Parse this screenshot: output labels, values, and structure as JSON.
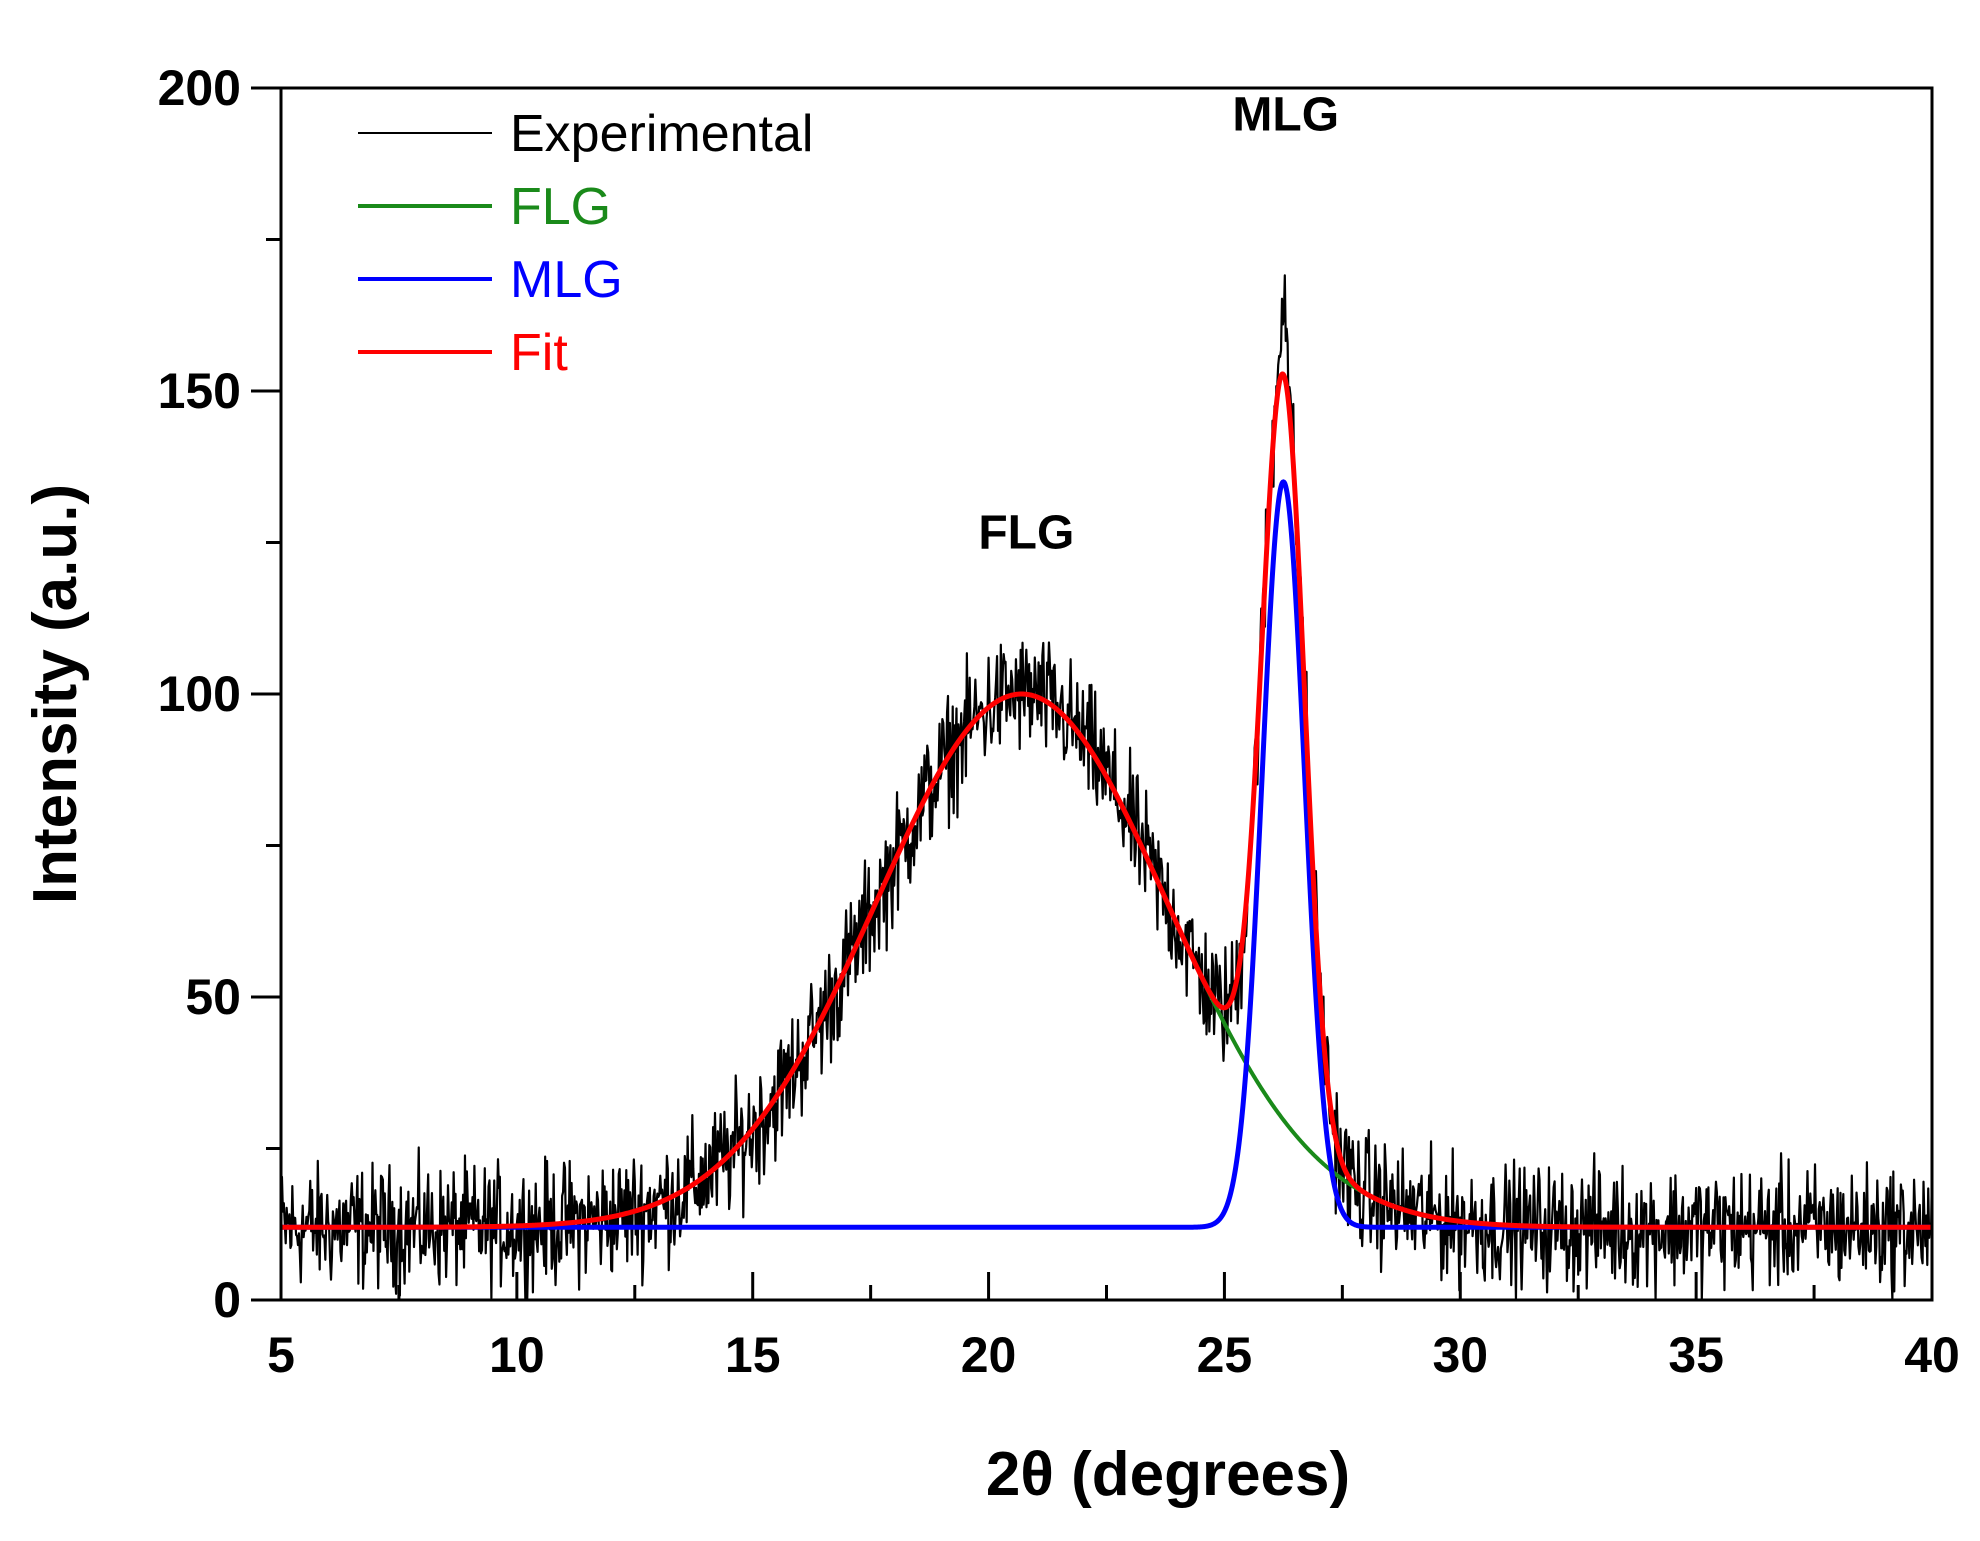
{
  "chart_data": {
    "type": "line",
    "title": "",
    "xlabel": "2θ (degrees)",
    "ylabel": "Intensity (a.u.)",
    "xlim": [
      5,
      40
    ],
    "ylim": [
      0,
      200
    ],
    "xticks": [
      5,
      10,
      15,
      20,
      25,
      30,
      35,
      40
    ],
    "yticks": [
      0,
      50,
      100,
      150,
      200
    ],
    "grid": false,
    "legend": "top-left",
    "baseline": 12,
    "series": [
      {
        "name": "Experimental",
        "color": "#000000",
        "model": "noisy-sum-of-components",
        "noise_amplitude": 7
      },
      {
        "name": "FLG",
        "color": "#1a8a1a",
        "model": "gaussian",
        "center": 20.7,
        "height": 88,
        "sigma": 3.1
      },
      {
        "name": "MLG",
        "color": "#0000ff",
        "model": "gaussian",
        "center": 26.25,
        "height": 123,
        "sigma": 0.45
      },
      {
        "name": "Fit",
        "color": "#ff0000",
        "model": "sum-of-components"
      }
    ],
    "annotations": [
      {
        "text": "FLG",
        "x": 20.8,
        "y": 124
      },
      {
        "text": "MLG",
        "x": 26.3,
        "y": 193
      }
    ]
  }
}
